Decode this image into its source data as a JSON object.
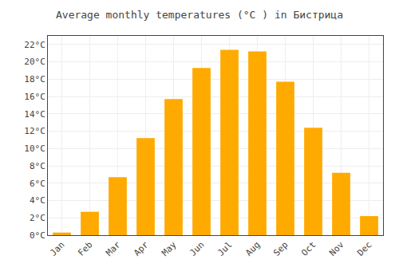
{
  "chart_data": {
    "type": "bar",
    "title": "Average monthly temperatures (°C ) in Бистрица",
    "categories": [
      "Jan",
      "Feb",
      "Mar",
      "Apr",
      "May",
      "Jun",
      "Jul",
      "Aug",
      "Sep",
      "Oct",
      "Nov",
      "Dec"
    ],
    "values": [
      0.3,
      2.7,
      6.7,
      11.2,
      15.7,
      19.3,
      21.4,
      21.2,
      17.7,
      12.4,
      7.2,
      2.2
    ],
    "color": "#FFAA00",
    "ylim": [
      0,
      23
    ],
    "yticks": [
      {
        "value": 0,
        "label": "0°C"
      },
      {
        "value": 2,
        "label": "2°C"
      },
      {
        "value": 4,
        "label": "4°C"
      },
      {
        "value": 6,
        "label": "6°C"
      },
      {
        "value": 8,
        "label": "8°C"
      },
      {
        "value": 10,
        "label": "10°C"
      },
      {
        "value": 12,
        "label": "12°C"
      },
      {
        "value": 14,
        "label": "14°C"
      },
      {
        "value": 16,
        "label": "16°C"
      },
      {
        "value": 18,
        "label": "18°C"
      },
      {
        "value": 20,
        "label": "20°C"
      },
      {
        "value": 22,
        "label": "22°C"
      }
    ],
    "grid": true
  }
}
